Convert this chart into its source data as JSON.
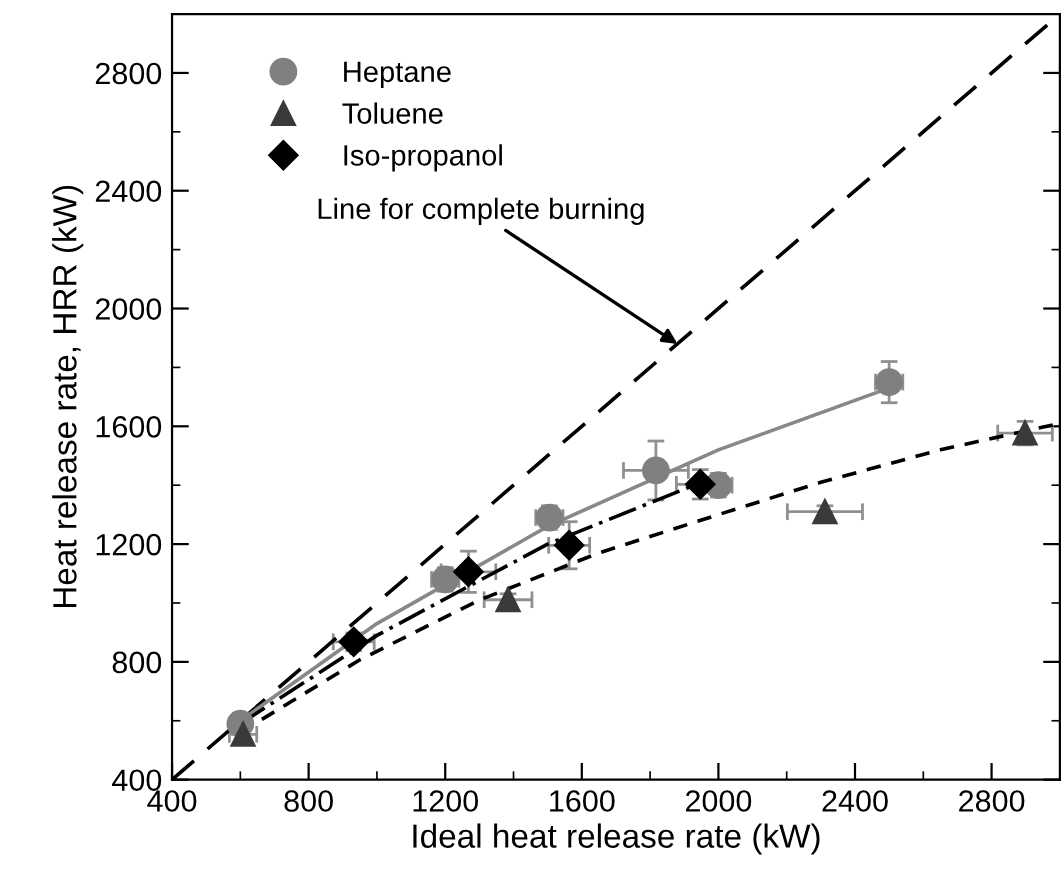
{
  "chart_data": {
    "type": "scatter",
    "xlabel": "Ideal heat release rate (kW)",
    "ylabel": "Heat release rate, HRR (kW)",
    "xlim": [
      400,
      3000
    ],
    "ylim": [
      400,
      3000
    ],
    "xticks": [
      400,
      800,
      1200,
      1600,
      2000,
      2400,
      2800
    ],
    "yticks": [
      400,
      800,
      1200,
      1600,
      2000,
      2400,
      2800
    ],
    "grid": false,
    "legend": "top left",
    "series": [
      {
        "name": "Heptane",
        "color": "#808080",
        "marker": "circle",
        "x": [
          600,
          1200,
          1505,
          1817,
          2000,
          2500
        ],
        "values": [
          590,
          1080,
          1290,
          1450,
          1400,
          1750
        ],
        "errors": [
          null,
          40,
          40,
          100,
          40,
          70
        ],
        "xerrors": [
          null,
          40,
          40,
          95,
          40,
          40
        ]
      },
      {
        "name": "Toluene",
        "color": "#3a3a3a",
        "marker": "triangle",
        "x": [
          608,
          1384,
          2312,
          2898
        ],
        "values": [
          554,
          1011,
          1310,
          1577
        ],
        "errors": [
          30,
          20,
          20,
          40
        ],
        "xerrors": [
          40,
          70,
          110,
          80
        ]
      },
      {
        "name": "Iso-propanol",
        "color": "#000000",
        "marker": "diamond",
        "x": [
          932,
          1268,
          1563,
          1947
        ],
        "values": [
          868,
          1106,
          1196,
          1403
        ],
        "errors": [
          30,
          70,
          80,
          50
        ],
        "xerrors": [
          60,
          80,
          60,
          70
        ]
      },
      {
        "type": "line",
        "color": "#000000",
        "line_style": "dashed",
        "x": [
          400,
          3000
        ],
        "values": [
          400,
          3000
        ]
      },
      {
        "type": "line",
        "color": "#888888",
        "line_style": "solid",
        "x": [
          600,
          1000,
          1500,
          2000,
          2500
        ],
        "values": [
          600,
          930,
          1260,
          1520,
          1730
        ]
      },
      {
        "type": "line",
        "color": "#000000",
        "line_style": "dashdot",
        "x": [
          600,
          1000,
          1500,
          1950
        ],
        "values": [
          590,
          890,
          1200,
          1410
        ]
      },
      {
        "type": "line",
        "color": "#000000",
        "line_style": "dotted",
        "x": [
          600,
          950,
          1300,
          1650,
          2000,
          2300,
          2650,
          3000
        ],
        "values": [
          560,
          807,
          1010,
          1170,
          1300,
          1410,
          1520,
          1610
        ]
      }
    ],
    "annotations": [
      {
        "text": "Line for complete burning",
        "x": 1880,
        "y": 1880
      }
    ]
  }
}
